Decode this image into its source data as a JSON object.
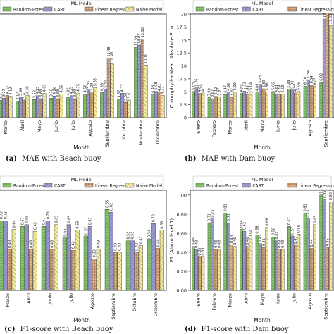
{
  "legend_title": "ML Model",
  "models": [
    "Random-Forest",
    "CART",
    "Linear Regression",
    "Naïve Model"
  ],
  "model_colors": [
    "#86c36f",
    "#9a9ad6",
    "#f0b27e",
    "#f4ee9a"
  ],
  "chart_data": [
    {
      "type": "bar",
      "panel": "a",
      "caption_label": "(a)",
      "caption_text": "MAE with Beach buoy",
      "xlabel": "Month",
      "ylabel": "",
      "ylim": [
        0,
        20
      ],
      "legend_models": [
        0,
        1,
        2,
        3
      ],
      "categories": [
        "Marzo",
        "Abril",
        "Mayo",
        "Junio",
        "Julio",
        "Agosto",
        "Septiembre",
        "Octubre",
        "Noviembre",
        "Diciembre"
      ],
      "series": [
        {
          "name": "Random-Forest",
          "values": [
            3.37,
            3.17,
            3.52,
            3.76,
            4.02,
            4.58,
            4.88,
            3.57,
            13.59,
            4.48
          ]
        },
        {
          "name": "CART",
          "values": [
            3.77,
            3.96,
            4.25,
            4.2,
            4.25,
            5.35,
            5.5,
            4.72,
            14.02,
            5.08
          ]
        },
        {
          "name": "Linear Regression",
          "values": [
            4.33,
            3.41,
            3.68,
            3.68,
            3.69,
            4.94,
            11.48,
            3.0,
            15.18,
            4.81
          ]
        },
        {
          "name": "Naïve Model",
          "values": [
            4.13,
            4.35,
            4.69,
            4.56,
            4.75,
            5.83,
            10.48,
            3.41,
            10.18,
            4.31
          ]
        }
      ]
    },
    {
      "type": "bar",
      "panel": "b",
      "caption_label": "(b)",
      "caption_text": "MAE with Dam buoy",
      "xlabel": "Month",
      "ylabel": "Chlorophyll-a Mean Absolute Error",
      "ylim": [
        0,
        20
      ],
      "legend_models": [
        0,
        1,
        2
      ],
      "categories": [
        "Enero",
        "Febrero",
        "Marzo",
        "Abril",
        "Mayo",
        "Junio",
        "Julio",
        "Agosto",
        "Septiembre"
      ],
      "series": [
        {
          "name": "Random-Forest",
          "values": [
            5.05,
            3.9,
            4.47,
            4.69,
            4.8,
            5.06,
            5.49,
            6.1,
            6.82
          ]
        },
        {
          "name": "CART",
          "values": [
            5.76,
            3.67,
            4.92,
            5.11,
            6.45,
            4.61,
            5.33,
            7.34,
            19.05
          ]
        },
        {
          "name": "Linear Regression",
          "values": [
            4.67,
            4.12,
            3.92,
            4.43,
            5.58,
            4.49,
            4.77,
            6.34,
            20.16
          ]
        },
        {
          "name": "Naïve Model",
          "values": [
            4.77,
            3.97,
            5.0,
            5.04,
            4.98,
            4.53,
            5.06,
            6.05,
            17.8
          ]
        }
      ]
    },
    {
      "type": "bar",
      "panel": "c",
      "caption_label": "(c)",
      "caption_text": "F1-score with Beach buoy",
      "xlabel": "Month",
      "ylabel": "",
      "ylim": [
        0,
        1.05
      ],
      "legend_models": [
        0,
        1,
        2,
        3
      ],
      "categories": [
        "Marzo",
        "Abril",
        "Junio",
        "Julio",
        "Agosto",
        "Septiembre",
        "Octubre",
        "Diciembre"
      ],
      "series": [
        {
          "name": "Random-Forest",
          "values": [
            0.73,
            0.67,
            0.67,
            0.55,
            0.57,
            0.85,
            0.52,
            0.54
          ]
        },
        {
          "name": "CART",
          "values": [
            0.73,
            0.69,
            0.73,
            0.69,
            0.67,
            0.82,
            0.52,
            0.7
          ]
        },
        {
          "name": "Linear Regression",
          "values": [
            0.43,
            0.43,
            0.43,
            0.42,
            0.33,
            0.4,
            0.4,
            0.44
          ]
        },
        {
          "name": "Naïve Model",
          "values": [
            0.64,
            0.62,
            0.69,
            0.63,
            0.43,
            0.4,
            0.47,
            0.63
          ]
        }
      ]
    },
    {
      "type": "bar",
      "panel": "d",
      "caption_label": "(d)",
      "caption_text": "F1-score with Dam buoy",
      "xlabel": "Month",
      "ylabel": "F1 (Alarm level 1)",
      "ylim": [
        0,
        1.05
      ],
      "yticks": [
        0.0,
        0.2,
        0.4,
        0.6,
        0.8,
        1.0
      ],
      "legend_models": [
        0,
        1,
        2
      ],
      "categories": [
        "Enero",
        "Febrero",
        "Marzo",
        "Abril",
        "Mayo",
        "Junio",
        "Julio",
        "Agosto",
        "Septiembre"
      ],
      "series": [
        {
          "name": "Random-Forest",
          "values": [
            0.46,
            0.71,
            0.81,
            0.64,
            0.58,
            0.56,
            0.67,
            0.81,
            1.0
          ]
        },
        {
          "name": "CART",
          "values": [
            0.43,
            0.75,
            0.71,
            0.62,
            0.49,
            0.52,
            0.57,
            0.75,
            0.95
          ]
        },
        {
          "name": "Linear Regression",
          "values": [
            0.35,
            0.43,
            0.48,
            0.46,
            0.45,
            0.43,
            0.47,
            0.44,
            0.45
          ]
        },
        {
          "name": "Naïve Model",
          "values": [
            0.35,
            0.43,
            0.46,
            0.54,
            0.66,
            0.43,
            0.59,
            0.69,
            0.93
          ]
        }
      ]
    }
  ]
}
